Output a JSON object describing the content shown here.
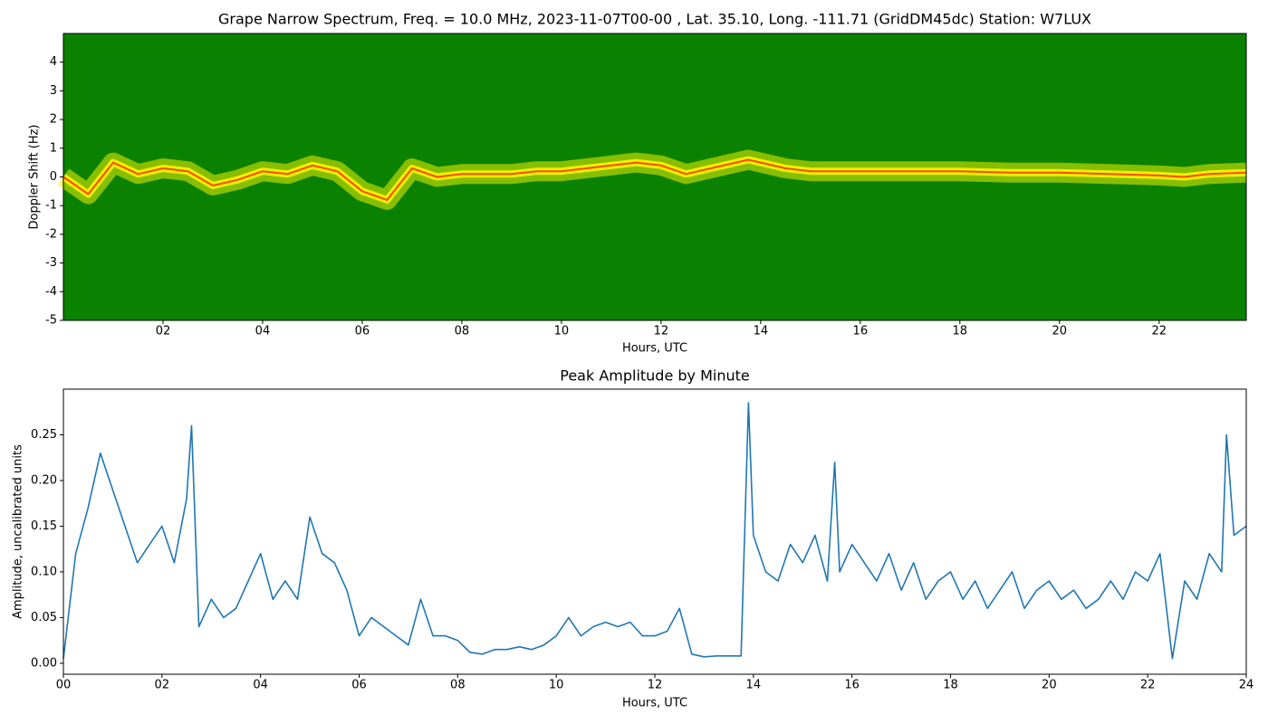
{
  "chart_data": [
    {
      "type": "spectrogram",
      "title": "Grape Narrow Spectrum, Freq. = 10.0 MHz, 2023-11-07T00-00 , Lat.  35.10, Long. -111.71 (GridDM45dc) Station: W7LUX",
      "xlabel": "Hours, UTC",
      "ylabel": "Doppler Shift (Hz)",
      "x": [
        0,
        0.5,
        1,
        1.5,
        2,
        2.5,
        3,
        3.5,
        4,
        4.5,
        5,
        5.5,
        6,
        6.5,
        7,
        7.5,
        8,
        8.5,
        9,
        9.5,
        10,
        10.5,
        11,
        11.5,
        12,
        12.5,
        13.75,
        14,
        14.5,
        15,
        16,
        17,
        18,
        19,
        20,
        21,
        22,
        22.5,
        23,
        23.75
      ],
      "values": [
        0,
        -0.6,
        0.5,
        0.1,
        0.3,
        0.2,
        -0.3,
        -0.1,
        0.2,
        0.1,
        0.4,
        0.2,
        -0.5,
        -0.8,
        0.3,
        0,
        0.1,
        0.1,
        0.1,
        0.2,
        0.2,
        0.3,
        0.4,
        0.5,
        0.4,
        0.1,
        0.6,
        0.5,
        0.3,
        0.2,
        0.2,
        0.2,
        0.2,
        0.15,
        0.15,
        0.1,
        0.05,
        0,
        0.1,
        0.15
      ],
      "color": "#ff4a00",
      "band_color": "#f0f000",
      "background": "#0a8200",
      "xlim": [
        0,
        23.75
      ],
      "xticks": [
        {
          "value": 2,
          "label": "02"
        },
        {
          "value": 4,
          "label": "04"
        },
        {
          "value": 6,
          "label": "06"
        },
        {
          "value": 8,
          "label": "08"
        },
        {
          "value": 10,
          "label": "10"
        },
        {
          "value": 12,
          "label": "12"
        },
        {
          "value": 14,
          "label": "14"
        },
        {
          "value": 16,
          "label": "16"
        },
        {
          "value": 18,
          "label": "18"
        },
        {
          "value": 20,
          "label": "20"
        },
        {
          "value": 22,
          "label": "22"
        }
      ],
      "ylim": [
        -5,
        5
      ],
      "yticks": [
        -5,
        -4,
        -3,
        -2,
        -1,
        0,
        1,
        2,
        3,
        4
      ]
    },
    {
      "type": "line",
      "title": "Peak Amplitude by Minute",
      "xlabel": "Hours, UTC",
      "ylabel": "Amplitude, uncalibrated units",
      "x": [
        0,
        0.25,
        0.5,
        0.75,
        1,
        1.25,
        1.5,
        1.75,
        2,
        2.25,
        2.5,
        2.6,
        2.75,
        3,
        3.25,
        3.5,
        3.75,
        4,
        4.25,
        4.5,
        4.75,
        5,
        5.25,
        5.5,
        5.75,
        6,
        6.25,
        6.5,
        6.75,
        7,
        7.25,
        7.5,
        7.75,
        8,
        8.25,
        8.5,
        8.75,
        9,
        9.25,
        9.5,
        9.75,
        10,
        10.25,
        10.5,
        10.75,
        11,
        11.25,
        11.5,
        11.75,
        12,
        12.25,
        12.5,
        12.75,
        13,
        13.25,
        13.5,
        13.75,
        13.9,
        14,
        14.25,
        14.5,
        14.75,
        15,
        15.25,
        15.5,
        15.65,
        15.75,
        16,
        16.25,
        16.5,
        16.75,
        17,
        17.25,
        17.5,
        17.75,
        18,
        18.25,
        18.5,
        18.75,
        19,
        19.25,
        19.5,
        19.75,
        20,
        20.25,
        20.5,
        20.75,
        21,
        21.25,
        21.5,
        21.75,
        22,
        22.25,
        22.5,
        22.75,
        23,
        23.25,
        23.5,
        23.6,
        23.75,
        24
      ],
      "values": [
        0.005,
        0.12,
        0.17,
        0.23,
        0.19,
        0.15,
        0.11,
        0.13,
        0.15,
        0.11,
        0.18,
        0.26,
        0.04,
        0.07,
        0.05,
        0.06,
        0.09,
        0.12,
        0.07,
        0.09,
        0.07,
        0.16,
        0.12,
        0.11,
        0.08,
        0.03,
        0.05,
        0.04,
        0.03,
        0.02,
        0.07,
        0.03,
        0.03,
        0.025,
        0.012,
        0.01,
        0.015,
        0.015,
        0.018,
        0.015,
        0.02,
        0.03,
        0.05,
        0.03,
        0.04,
        0.045,
        0.04,
        0.045,
        0.03,
        0.03,
        0.035,
        0.06,
        0.01,
        0.007,
        0.008,
        0.008,
        0.008,
        0.285,
        0.14,
        0.1,
        0.09,
        0.13,
        0.11,
        0.14,
        0.09,
        0.22,
        0.1,
        0.13,
        0.11,
        0.09,
        0.12,
        0.08,
        0.11,
        0.07,
        0.09,
        0.1,
        0.07,
        0.09,
        0.06,
        0.08,
        0.1,
        0.06,
        0.08,
        0.09,
        0.07,
        0.08,
        0.06,
        0.07,
        0.09,
        0.07,
        0.1,
        0.09,
        0.12,
        0.005,
        0.09,
        0.07,
        0.12,
        0.1,
        0.25,
        0.14,
        0.15
      ],
      "color": "#1f77b4",
      "xlim": [
        0,
        24
      ],
      "xticks": [
        {
          "value": 0,
          "label": "00"
        },
        {
          "value": 2,
          "label": "02"
        },
        {
          "value": 4,
          "label": "04"
        },
        {
          "value": 6,
          "label": "06"
        },
        {
          "value": 8,
          "label": "08"
        },
        {
          "value": 10,
          "label": "10"
        },
        {
          "value": 12,
          "label": "12"
        },
        {
          "value": 14,
          "label": "14"
        },
        {
          "value": 16,
          "label": "16"
        },
        {
          "value": 18,
          "label": "18"
        },
        {
          "value": 20,
          "label": "20"
        },
        {
          "value": 22,
          "label": "22"
        },
        {
          "value": 24,
          "label": "24"
        }
      ],
      "ylim": [
        -0.012,
        0.3
      ],
      "yticks": [
        {
          "value": 0,
          "label": "0.00"
        },
        {
          "value": 0.05,
          "label": "0.05"
        },
        {
          "value": 0.1,
          "label": "0.10"
        },
        {
          "value": 0.15,
          "label": "0.15"
        },
        {
          "value": 0.2,
          "label": "0.20"
        },
        {
          "value": 0.25,
          "label": "0.25"
        }
      ]
    }
  ]
}
